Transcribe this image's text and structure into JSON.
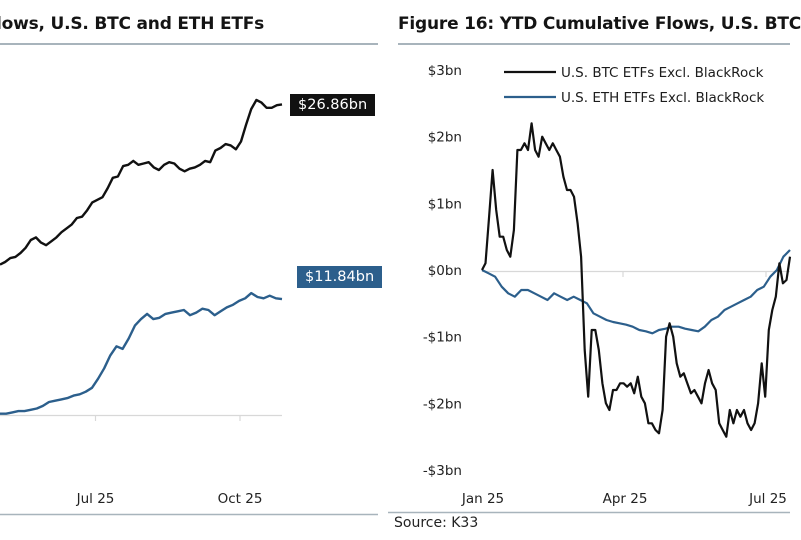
{
  "colors": {
    "btc": "#111111",
    "eth": "#2c5f8c",
    "grid": "#d8d8d8",
    "rule": "#a8b4bc"
  },
  "source": "Source: K33",
  "chart_data": [
    {
      "type": "line",
      "title": "lows, U.S. BTC and ETH ETFs",
      "xlabel": "",
      "ylabel": "",
      "x_tick_labels": [
        "Jul 25",
        "Oct 25"
      ],
      "end_labels": {
        "btc": "$26.86bn",
        "eth": "$11.84bn"
      },
      "series": [
        {
          "name": "BTC",
          "color": "#111111",
          "values": [
            14.5,
            14.7,
            15.0,
            15.1,
            15.4,
            15.8,
            16.4,
            16.6,
            16.2,
            16.0,
            16.3,
            16.6,
            17.0,
            17.3,
            17.6,
            18.1,
            18.2,
            18.7,
            19.3,
            19.5,
            19.7,
            20.4,
            21.2,
            21.3,
            22.1,
            22.2,
            22.5,
            22.2,
            22.3,
            22.4,
            22.0,
            21.8,
            22.2,
            22.4,
            22.3,
            21.9,
            21.7,
            21.9,
            22.0,
            22.2,
            22.5,
            22.4,
            23.3,
            23.5,
            23.8,
            23.7,
            23.4,
            24.0,
            25.3,
            26.5,
            27.2,
            27.0,
            26.6,
            26.6,
            26.8,
            26.86
          ]
        },
        {
          "name": "ETH",
          "color": "#2c5f8c",
          "values": [
            3.0,
            3.0,
            3.1,
            3.2,
            3.2,
            3.3,
            3.4,
            3.6,
            3.9,
            4.0,
            4.1,
            4.2,
            4.4,
            4.5,
            4.7,
            5.0,
            5.7,
            6.5,
            7.5,
            8.2,
            8.0,
            8.8,
            9.8,
            10.3,
            10.7,
            10.3,
            10.4,
            10.7,
            10.8,
            10.9,
            11.0,
            10.6,
            10.8,
            11.1,
            11.0,
            10.6,
            10.9,
            11.2,
            11.4,
            11.7,
            11.9,
            12.3,
            12.0,
            11.9,
            12.1,
            11.9,
            11.84
          ]
        }
      ]
    },
    {
      "type": "line",
      "title": "Figure 16: YTD Cumulative Flows, U.S. BTC",
      "xlabel": "",
      "ylabel": "",
      "ylim": [
        -3,
        3
      ],
      "y_tick_labels": [
        "$3bn",
        "$2bn",
        "$1bn",
        "$0bn",
        "-$1bn",
        "-$2bn",
        "-$3bn"
      ],
      "y_ticks": [
        3,
        2,
        1,
        0,
        -1,
        -2,
        -3
      ],
      "x_tick_labels": [
        "Jan 25",
        "Apr 25",
        "Jul 25"
      ],
      "legend": [
        "U.S. BTC ETFs Excl. BlackRock",
        "U.S. ETH ETFs Excl. BlackRock"
      ],
      "legend_position": "top",
      "grid": false,
      "series": [
        {
          "name": "U.S. BTC ETFs Excl. BlackRock",
          "color": "#111111",
          "values": [
            0,
            0.1,
            0.8,
            1.5,
            0.9,
            0.5,
            0.5,
            0.3,
            0.2,
            0.6,
            1.8,
            1.8,
            1.9,
            1.8,
            2.2,
            1.8,
            1.7,
            2.0,
            1.9,
            1.8,
            1.9,
            1.8,
            1.7,
            1.4,
            1.2,
            1.2,
            1.1,
            0.7,
            0.2,
            -1.2,
            -1.9,
            -0.9,
            -0.9,
            -1.2,
            -1.7,
            -2.0,
            -2.1,
            -1.8,
            -1.8,
            -1.7,
            -1.7,
            -1.75,
            -1.7,
            -1.85,
            -1.6,
            -1.9,
            -2.0,
            -2.3,
            -2.3,
            -2.4,
            -2.45,
            -2.1,
            -1.0,
            -0.8,
            -1.0,
            -1.4,
            -1.6,
            -1.55,
            -1.7,
            -1.85,
            -1.8,
            -1.9,
            -2.0,
            -1.7,
            -1.5,
            -1.7,
            -1.8,
            -2.3,
            -2.4,
            -2.5,
            -2.1,
            -2.3,
            -2.1,
            -2.2,
            -2.1,
            -2.3,
            -2.4,
            -2.3,
            -2.0,
            -1.4,
            -1.9,
            -0.9,
            -0.6,
            -0.4,
            0.1,
            -0.2,
            -0.15,
            0.2
          ]
        },
        {
          "name": "U.S. ETH ETFs Excl. BlackRock",
          "color": "#2c5f8c",
          "values": [
            0,
            -0.05,
            -0.1,
            -0.25,
            -0.35,
            -0.4,
            -0.3,
            -0.3,
            -0.35,
            -0.4,
            -0.45,
            -0.35,
            -0.4,
            -0.45,
            -0.4,
            -0.45,
            -0.5,
            -0.65,
            -0.7,
            -0.75,
            -0.78,
            -0.8,
            -0.82,
            -0.85,
            -0.9,
            -0.92,
            -0.95,
            -0.9,
            -0.88,
            -0.85,
            -0.85,
            -0.88,
            -0.9,
            -0.92,
            -0.85,
            -0.75,
            -0.7,
            -0.6,
            -0.55,
            -0.5,
            -0.45,
            -0.4,
            -0.3,
            -0.25,
            -0.1,
            0.0,
            0.2,
            0.3
          ]
        }
      ]
    }
  ]
}
